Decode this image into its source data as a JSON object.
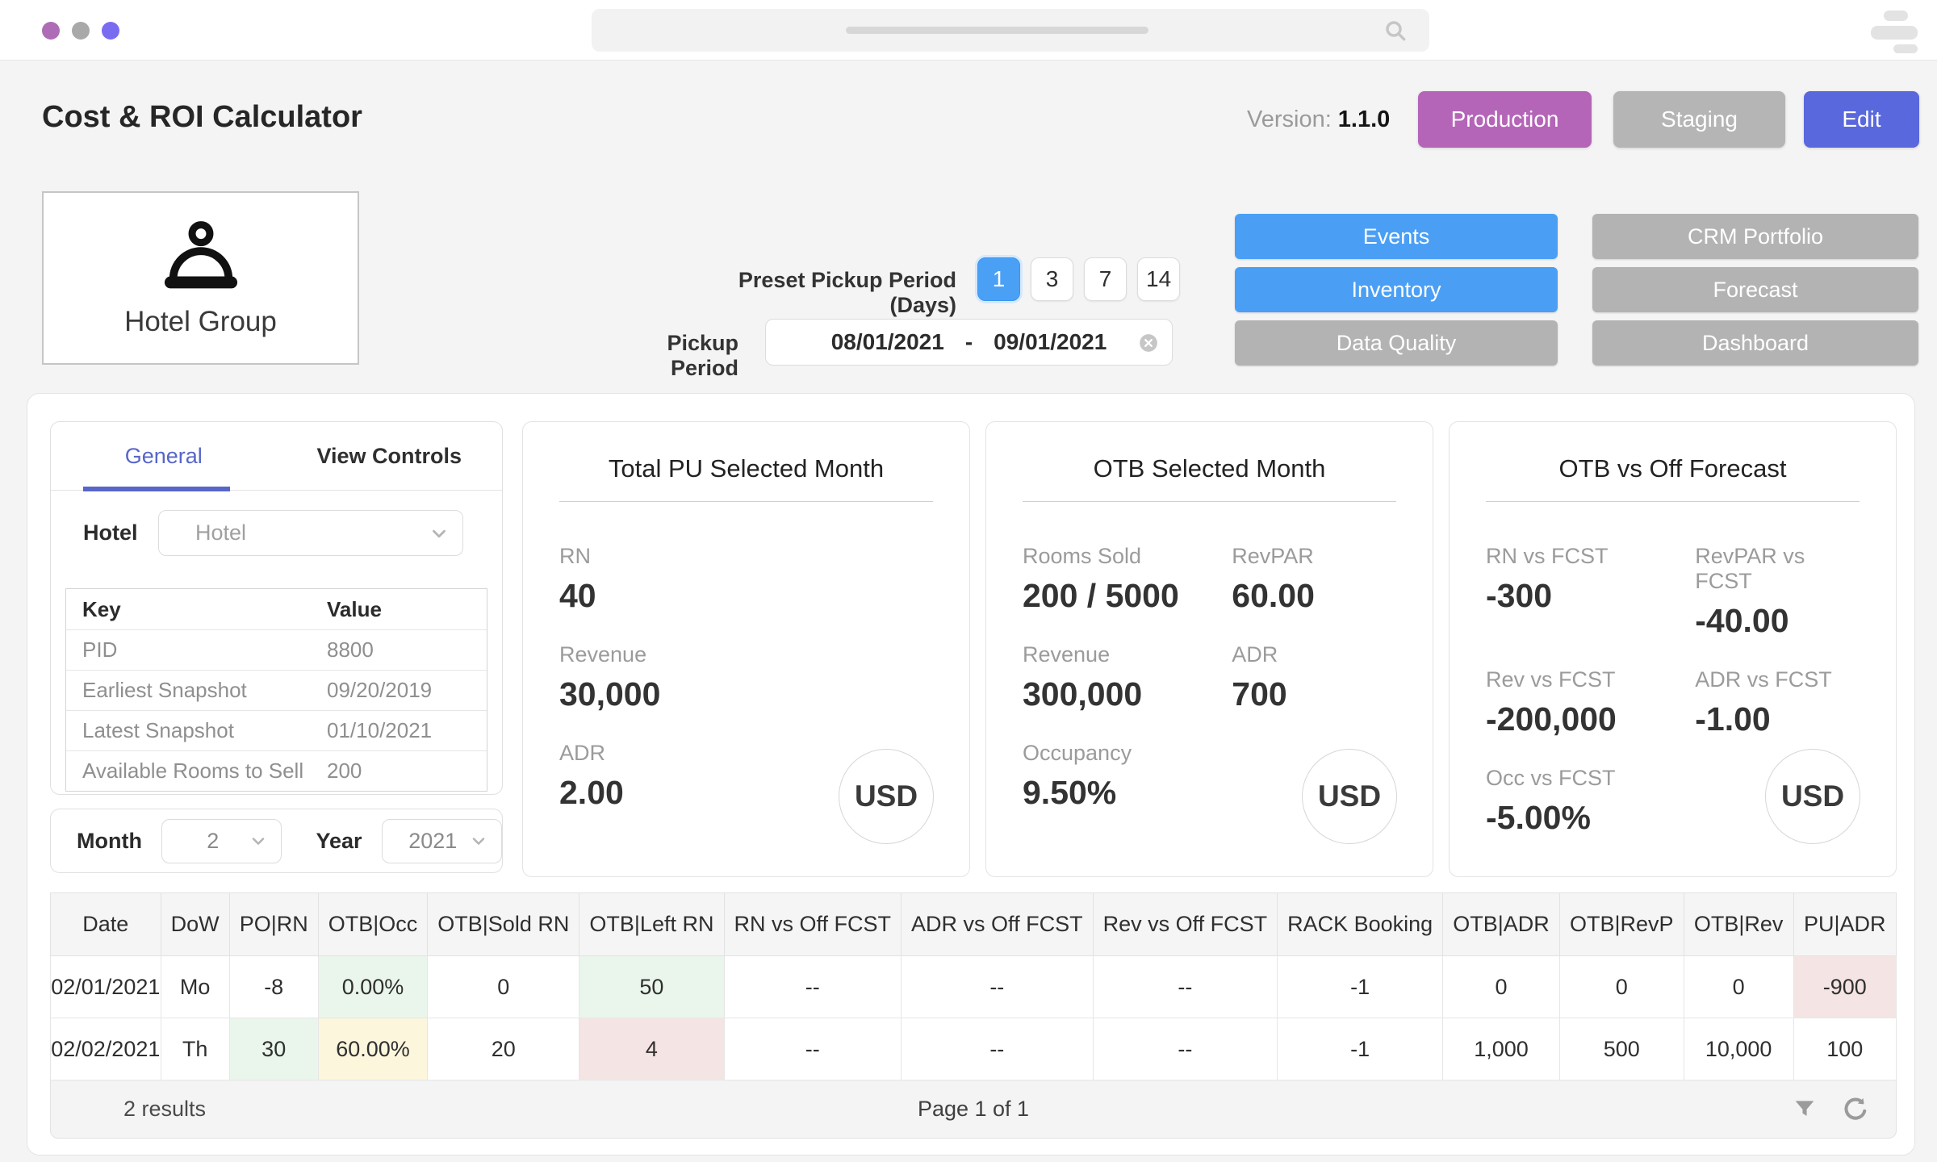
{
  "topbar": {
    "dots": [
      "#ad6cb5",
      "#a9a9a9",
      "#7a6cf0"
    ],
    "search_icon": "magnifier-icon",
    "right_icon": "lines-icon"
  },
  "header": {
    "title": "Cost & ROI Calculator",
    "version_label": "Version:",
    "version_value": "1.1.0",
    "buttons": [
      {
        "label": "Production",
        "color": "#b465b8"
      },
      {
        "label": "Staging",
        "color": "#b5b5b5"
      },
      {
        "label": "Edit",
        "color": "#5a68dd"
      }
    ]
  },
  "hotel_card": {
    "label": "Hotel Group",
    "icon": "cloche-icon"
  },
  "pickup": {
    "preset_label": "Preset Pickup Period (Days)",
    "presets": [
      "1",
      "3",
      "7",
      "14"
    ],
    "active_preset": "1",
    "period_label": "Pickup Period",
    "date_start": "08/01/2021",
    "date_separator": "-",
    "date_end": "09/01/2021"
  },
  "nav_buttons": {
    "col1": [
      {
        "label": "Events",
        "active": true
      },
      {
        "label": "Inventory",
        "active": true
      },
      {
        "label": "Data Quality",
        "active": false
      }
    ],
    "col2": [
      {
        "label": "CRM Portfolio",
        "active": false
      },
      {
        "label": "Forecast",
        "active": false
      },
      {
        "label": "Dashboard",
        "active": false
      }
    ]
  },
  "panel": {
    "tabs": [
      {
        "label": "General",
        "active": true
      },
      {
        "label": "View Controls",
        "active": false
      }
    ],
    "hotel_label": "Hotel",
    "hotel_placeholder": "Hotel",
    "kv_table": {
      "headers": [
        "Key",
        "Value"
      ],
      "rows": [
        [
          "PID",
          "8800"
        ],
        [
          "Earliest Snapshot",
          "09/20/2019"
        ],
        [
          "Latest Snapshot",
          "01/10/2021"
        ],
        [
          "Available Rooms to Sell",
          "200"
        ]
      ]
    },
    "month_label": "Month",
    "month_value": "2",
    "year_label": "Year",
    "year_value": "2021"
  },
  "cards": [
    {
      "title": "Total PU Selected Month",
      "metrics": [
        {
          "label": "RN",
          "value": "40"
        },
        {
          "label": "Revenue",
          "value": "30,000"
        },
        {
          "label": "ADR",
          "value": "2.00"
        }
      ],
      "currency": "USD"
    },
    {
      "title": "OTB Selected Month",
      "metrics": [
        {
          "label": "Rooms Sold",
          "value": "200 / 5000"
        },
        {
          "label": "RevPAR",
          "value": "60.00"
        },
        {
          "label": "Revenue",
          "value": "300,000"
        },
        {
          "label": "ADR",
          "value": "700"
        },
        {
          "label": "Occupancy",
          "value": "9.50%"
        }
      ],
      "currency": "USD"
    },
    {
      "title": "OTB vs Off Forecast",
      "metrics": [
        {
          "label": "RN vs FCST",
          "value": "-300"
        },
        {
          "label": "RevPAR vs FCST",
          "value": "-40.00"
        },
        {
          "label": "Rev vs FCST",
          "value": "-200,000"
        },
        {
          "label": "ADR vs FCST",
          "value": "-1.00"
        },
        {
          "label": "Occ vs FCST",
          "value": "-5.00%"
        }
      ],
      "currency": "USD"
    }
  ],
  "table": {
    "headers": [
      "Date",
      "DoW",
      "PO|RN",
      "OTB|Occ",
      "OTB|Sold RN",
      "OTB|Left RN",
      "RN vs Off FCST",
      "ADR vs Off FCST",
      "Rev vs Off FCST",
      "RACK Booking",
      "OTB|ADR",
      "OTB|RevP",
      "OTB|Rev",
      "PU|ADR"
    ],
    "rows": [
      [
        {
          "t": "02/01/2021"
        },
        {
          "t": "Mo"
        },
        {
          "t": "-8"
        },
        {
          "t": "0.00%",
          "hl": "g"
        },
        {
          "t": "0"
        },
        {
          "t": "50",
          "hl": "g"
        },
        {
          "t": "--"
        },
        {
          "t": "--"
        },
        {
          "t": "--"
        },
        {
          "t": "-1"
        },
        {
          "t": "0"
        },
        {
          "t": "0"
        },
        {
          "t": "0"
        },
        {
          "t": "-900",
          "hl": "r"
        }
      ],
      [
        {
          "t": "02/02/2021"
        },
        {
          "t": "Th"
        },
        {
          "t": "30",
          "hl": "g"
        },
        {
          "t": "60.00%",
          "hl": "y"
        },
        {
          "t": "20"
        },
        {
          "t": "4",
          "hl": "r"
        },
        {
          "t": "--"
        },
        {
          "t": "--"
        },
        {
          "t": "--"
        },
        {
          "t": "-1"
        },
        {
          "t": "1,000"
        },
        {
          "t": "500"
        },
        {
          "t": "10,000"
        },
        {
          "t": "100"
        }
      ]
    ],
    "footer": {
      "results": "2 results",
      "page": "Page 1 of 1",
      "icons": [
        "filter-icon",
        "refresh-icon"
      ]
    }
  },
  "colors": {
    "accent_blue": "#4a9ff5",
    "inactive_gray": "#b3b3b3",
    "tab_indigo": "#5766c8",
    "cell_green": "#eaf6ec",
    "cell_yellow": "#fcf6dd",
    "cell_red": "#f5e4e4"
  }
}
